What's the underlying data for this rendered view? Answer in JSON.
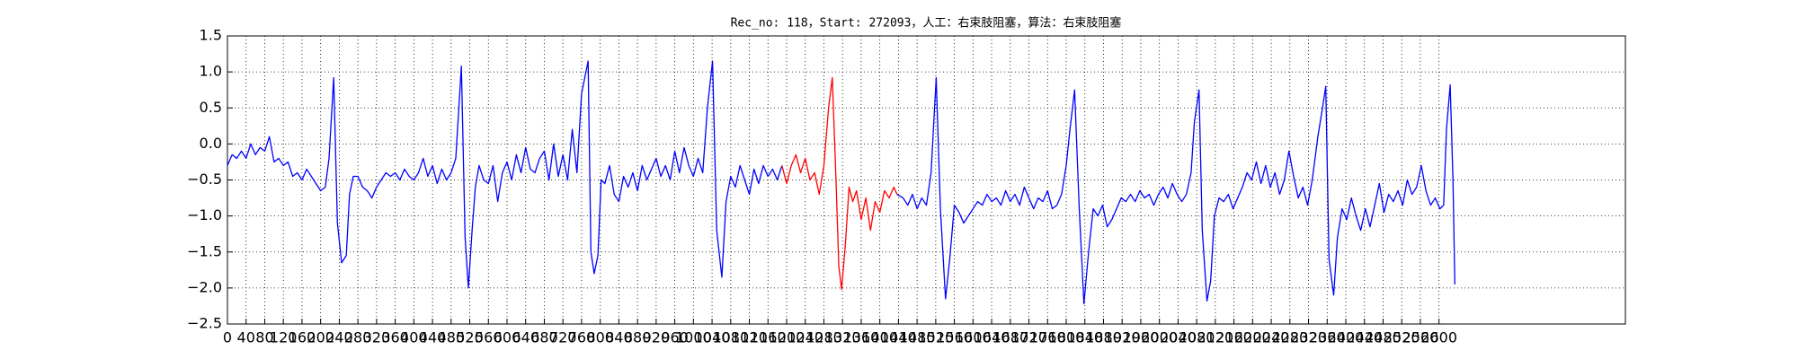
{
  "chart_data": {
    "type": "line",
    "title": "Rec_no: 118，Start: 272093，人工：右束肢阻塞，算法：右束肢阻塞",
    "xlim": [
      0,
      3000
    ],
    "ylim": [
      -2.5,
      1.5
    ],
    "grid": true,
    "yticks": [
      {
        "value": -2.5,
        "label": "−2.5"
      },
      {
        "value": -2,
        "label": "−2.0"
      },
      {
        "value": -1.5,
        "label": "−1.5"
      },
      {
        "value": -1,
        "label": "−1.0"
      },
      {
        "value": -0.5,
        "label": "−0.5"
      },
      {
        "value": 0,
        "label": "0.0"
      },
      0.5,
      {
        "value": 1,
        "label": "1.0"
      },
      1.5
    ],
    "xticks": [
      0,
      40,
      80,
      120,
      160,
      200,
      240,
      280,
      320,
      360,
      400,
      440,
      480,
      520,
      560,
      600,
      640,
      680,
      720,
      760,
      800,
      840,
      880,
      920,
      960,
      1000,
      1040,
      1080,
      1120,
      1160,
      1200,
      1240,
      1280,
      1320,
      1360,
      1400,
      1440,
      1480,
      1520,
      1560,
      1600,
      1640,
      1680,
      1720,
      1760,
      1800,
      1840,
      1880,
      1920,
      1960,
      2000,
      2040,
      2080,
      2120,
      2160,
      2200,
      2240,
      2280,
      2320,
      2360,
      2400,
      2440,
      2480,
      2520,
      2560,
      2600
    ],
    "series": [
      {
        "color": "#0000ff",
        "x": [
          0,
          10,
          20,
          30,
          40,
          50,
          60,
          70,
          80,
          90,
          100,
          110,
          120,
          130,
          140,
          150,
          160,
          170,
          180,
          190,
          200,
          210,
          218,
          228,
          236,
          245,
          255,
          262,
          270,
          280,
          290,
          300,
          310,
          320,
          330,
          340,
          350,
          360,
          370,
          380,
          390,
          400,
          410,
          420,
          430,
          440,
          450,
          460,
          470,
          480,
          490,
          502,
          510,
          517,
          525,
          532,
          540,
          550,
          560,
          570,
          580,
          590,
          600,
          610,
          620,
          630,
          640,
          650,
          660,
          670,
          680,
          690,
          700,
          710,
          720,
          730,
          740,
          750,
          760,
          774,
          780,
          787,
          795,
          802,
          810,
          820,
          830,
          840,
          850,
          860,
          870,
          880,
          890,
          900,
          910,
          920,
          930,
          940,
          950,
          960,
          970,
          980,
          990,
          1000,
          1010,
          1020,
          1030,
          1041,
          1050,
          1061,
          1070,
          1080,
          1090,
          1100,
          1110,
          1120,
          1130,
          1140,
          1150,
          1160,
          1170,
          1180,
          1190
        ],
        "values": [
          -0.3,
          -0.15,
          -0.2,
          -0.1,
          -0.2,
          0.0,
          -0.15,
          -0.05,
          -0.1,
          0.1,
          -0.25,
          -0.2,
          -0.3,
          -0.25,
          -0.45,
          -0.4,
          -0.5,
          -0.35,
          -0.45,
          -0.55,
          -0.65,
          -0.6,
          -0.2,
          0.92,
          -1.1,
          -1.65,
          -1.55,
          -0.7,
          -0.45,
          -0.45,
          -0.6,
          -0.65,
          -0.75,
          -0.6,
          -0.5,
          -0.4,
          -0.45,
          -0.4,
          -0.5,
          -0.35,
          -0.45,
          -0.5,
          -0.4,
          -0.2,
          -0.45,
          -0.3,
          -0.55,
          -0.35,
          -0.5,
          -0.4,
          -0.2,
          1.08,
          -1.3,
          -2.0,
          -1.2,
          -0.6,
          -0.3,
          -0.5,
          -0.55,
          -0.3,
          -0.8,
          -0.4,
          -0.25,
          -0.5,
          -0.15,
          -0.4,
          -0.05,
          -0.35,
          -0.4,
          -0.2,
          -0.1,
          -0.5,
          0.0,
          -0.45,
          -0.15,
          -0.5,
          0.2,
          -0.4,
          0.7,
          1.15,
          -1.5,
          -1.8,
          -1.55,
          -0.5,
          -0.55,
          -0.3,
          -0.7,
          -0.8,
          -0.45,
          -0.6,
          -0.4,
          -0.65,
          -0.3,
          -0.5,
          -0.35,
          -0.2,
          -0.45,
          -0.3,
          -0.5,
          -0.1,
          -0.4,
          -0.05,
          -0.3,
          -0.45,
          -0.2,
          -0.4,
          0.5,
          1.15,
          -1.2,
          -1.85,
          -0.8,
          -0.45,
          -0.6,
          -0.3,
          -0.5,
          -0.7,
          -0.35,
          -0.55,
          -0.3,
          -0.45,
          -0.35,
          -0.5,
          -0.3
        ]
      },
      {
        "color": "#ff0000",
        "x": [
          1190,
          1200,
          1210,
          1220,
          1230,
          1240,
          1250,
          1260,
          1270,
          1280,
          1290,
          1298,
          1306,
          1312,
          1318,
          1326,
          1334,
          1342,
          1350,
          1360,
          1370,
          1380,
          1390,
          1400,
          1410,
          1420,
          1430,
          1437
        ],
        "values": [
          -0.3,
          -0.55,
          -0.3,
          -0.15,
          -0.4,
          -0.2,
          -0.5,
          -0.4,
          -0.7,
          -0.3,
          0.5,
          0.92,
          -0.5,
          -1.7,
          -2.02,
          -1.4,
          -0.6,
          -0.8,
          -0.65,
          -1.05,
          -0.75,
          -1.2,
          -0.8,
          -0.95,
          -0.65,
          -0.75,
          -0.6,
          -0.7
        ]
      },
      {
        "color": "#0000ff",
        "x": [
          1437,
          1450,
          1460,
          1470,
          1480,
          1490,
          1500,
          1510,
          1521,
          1530,
          1541,
          1550,
          1560,
          1570,
          1580,
          1590,
          1600,
          1610,
          1620,
          1630,
          1640,
          1650,
          1660,
          1670,
          1680,
          1690,
          1700,
          1710,
          1720,
          1730,
          1740,
          1750,
          1760,
          1770,
          1780,
          1790,
          1800,
          1808,
          1818,
          1828,
          1838,
          1848,
          1858,
          1868,
          1878,
          1888,
          1898,
          1908,
          1918,
          1928,
          1938,
          1948,
          1958,
          1968,
          1978,
          1988,
          1998,
          2008,
          2018,
          2028,
          2038,
          2048,
          2058,
          2068,
          2075,
          2085,
          2092,
          2102,
          2110,
          2118,
          2128,
          2138,
          2148,
          2158,
          2168,
          2178,
          2188,
          2198,
          2208,
          2218,
          2228,
          2238,
          2248,
          2258,
          2268,
          2278,
          2288,
          2298,
          2308,
          2318,
          2328,
          2340,
          2350,
          2357,
          2364,
          2374,
          2382,
          2392,
          2402,
          2412,
          2422,
          2432,
          2442,
          2452,
          2462,
          2472,
          2482,
          2492,
          2502,
          2512,
          2522,
          2532,
          2542,
          2552,
          2562,
          2572,
          2582,
          2592,
          2602,
          2610,
          2616,
          2624,
          2630,
          2634
        ],
        "values": [
          -0.7,
          -0.75,
          -0.85,
          -0.7,
          -0.9,
          -0.75,
          -0.85,
          -0.4,
          0.92,
          -0.9,
          -2.15,
          -1.6,
          -0.85,
          -0.95,
          -1.1,
          -1.0,
          -0.9,
          -0.8,
          -0.85,
          -0.7,
          -0.8,
          -0.75,
          -0.85,
          -0.65,
          -0.8,
          -0.7,
          -0.85,
          -0.6,
          -0.75,
          -0.9,
          -0.75,
          -0.8,
          -0.65,
          -0.9,
          -0.85,
          -0.7,
          -0.3,
          0.2,
          0.75,
          -0.9,
          -2.22,
          -1.5,
          -0.9,
          -1.0,
          -0.85,
          -1.15,
          -1.05,
          -0.9,
          -0.75,
          -0.8,
          -0.7,
          -0.8,
          -0.65,
          -0.75,
          -0.7,
          -0.85,
          -0.7,
          -0.6,
          -0.75,
          -0.55,
          -0.7,
          -0.8,
          -0.7,
          -0.4,
          0.3,
          0.75,
          -1.2,
          -2.18,
          -1.9,
          -1.0,
          -0.75,
          -0.8,
          -0.7,
          -0.9,
          -0.75,
          -0.6,
          -0.4,
          -0.5,
          -0.25,
          -0.55,
          -0.3,
          -0.6,
          -0.4,
          -0.7,
          -0.5,
          -0.1,
          -0.45,
          -0.75,
          -0.6,
          -0.85,
          -0.5,
          0.1,
          0.5,
          0.8,
          -1.6,
          -2.1,
          -1.3,
          -0.9,
          -1.05,
          -0.75,
          -1.0,
          -1.2,
          -0.9,
          -1.15,
          -0.85,
          -0.55,
          -0.95,
          -0.7,
          -0.8,
          -0.65,
          -0.85,
          -0.5,
          -0.7,
          -0.6,
          -0.3,
          -0.65,
          -0.85,
          -0.75,
          -0.9,
          -0.85,
          0.2,
          0.82,
          -0.5,
          -1.95
        ]
      }
    ]
  }
}
